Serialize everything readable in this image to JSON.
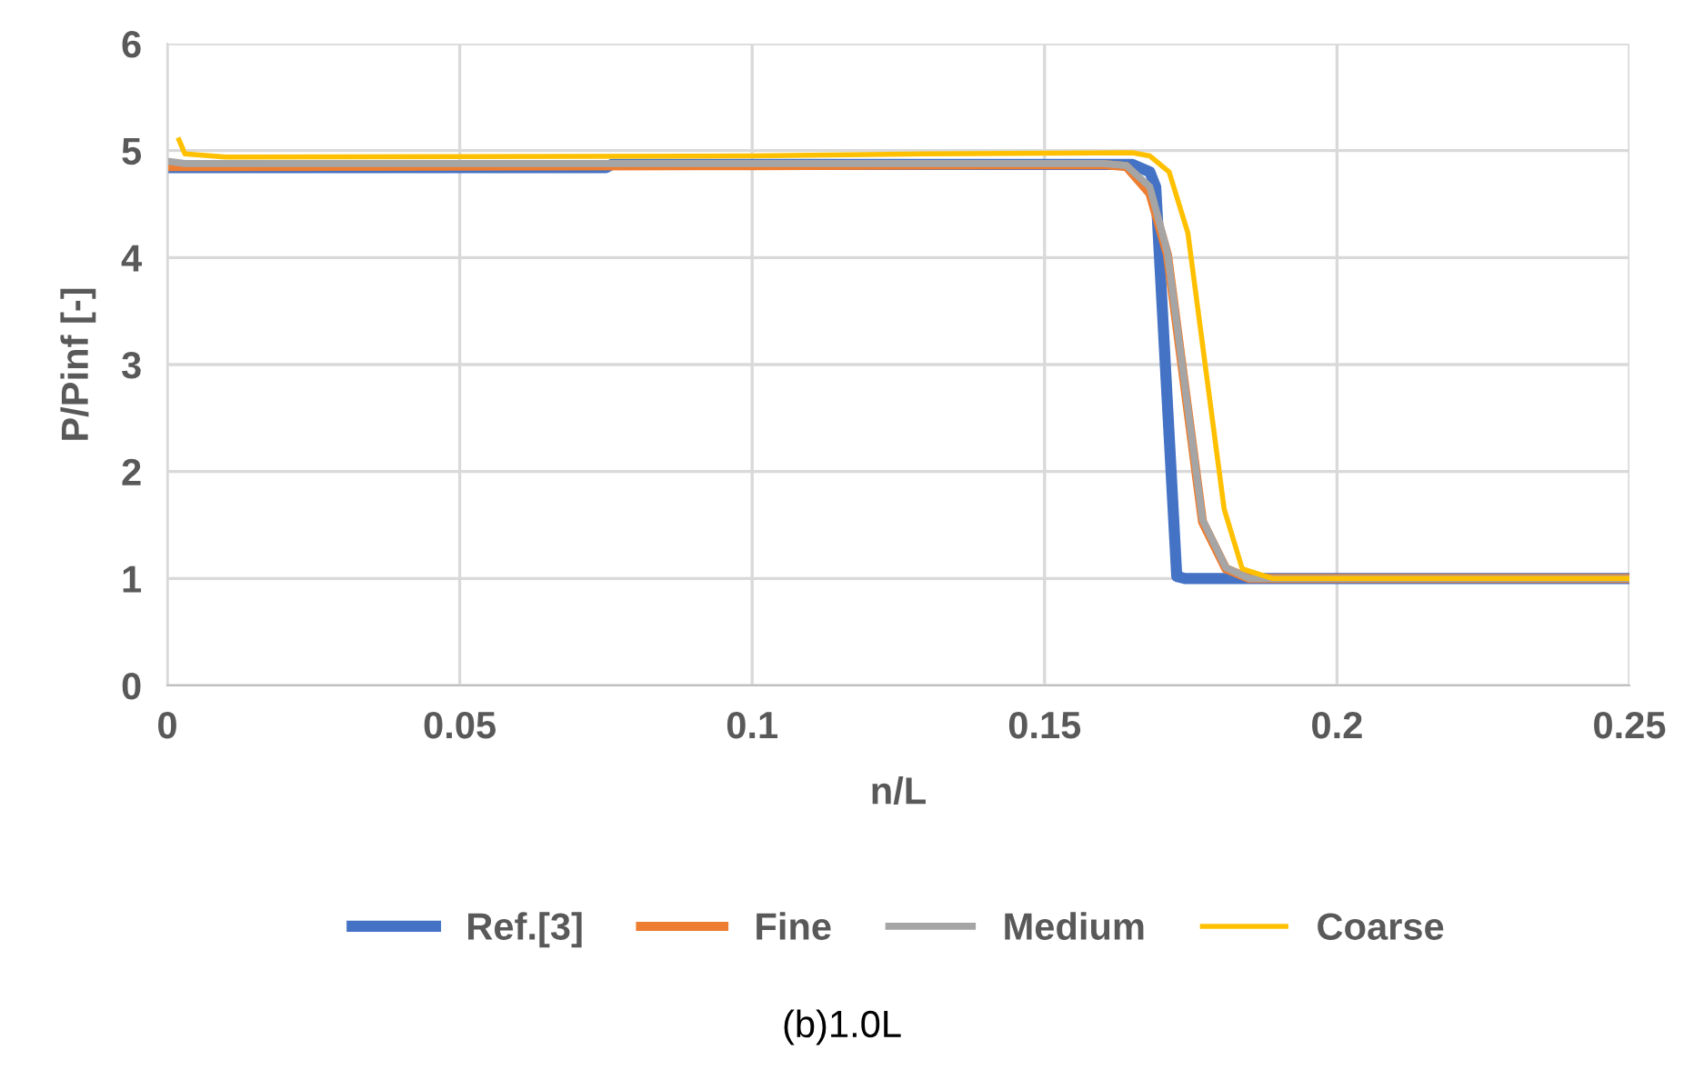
{
  "chart_data": {
    "type": "line",
    "xlabel": "n/L",
    "ylabel": "P/Pinf [-]",
    "annotations": [
      "(b)1.0L"
    ],
    "xlim": [
      0,
      0.25
    ],
    "ylim": [
      0,
      6
    ],
    "xticks": [
      0,
      0.05,
      0.1,
      0.15,
      0.2,
      0.25
    ],
    "yticks": [
      0,
      1,
      2,
      3,
      4,
      5,
      6
    ],
    "grid": true,
    "legend": "bottom",
    "marker": "none",
    "line_style": "solid",
    "series": [
      {
        "name": "Ref.[3]",
        "color": "#4472c4",
        "x": [
          0,
          0.075,
          0.076,
          0.14,
          0.165,
          0.168,
          0.169,
          0.1726,
          0.174,
          0.25
        ],
        "values": [
          4.84,
          4.84,
          4.87,
          4.87,
          4.87,
          4.8,
          4.66,
          1.02,
          1.0,
          1.0
        ]
      },
      {
        "name": "Fine",
        "color": "#ed7d31",
        "x": [
          0,
          0.005,
          0.1,
          0.16,
          0.164,
          0.168,
          0.171,
          0.177,
          0.181,
          0.185,
          0.25
        ],
        "values": [
          4.85,
          4.85,
          4.86,
          4.87,
          4.85,
          4.6,
          4.03,
          1.53,
          1.09,
          1.0,
          1.0
        ]
      },
      {
        "name": "Medium",
        "color": "#a5a5a5",
        "x": [
          0,
          0.003,
          0.1,
          0.16,
          0.164,
          0.168,
          0.171,
          0.177,
          0.181,
          0.185,
          0.25
        ],
        "values": [
          4.9,
          4.88,
          4.88,
          4.88,
          4.86,
          4.66,
          4.05,
          1.55,
          1.1,
          1.0,
          1.0
        ]
      },
      {
        "name": "Coarse",
        "color": "#ffc000",
        "x": [
          0.002,
          0.003,
          0.01,
          0.1,
          0.13,
          0.165,
          0.168,
          0.1713,
          0.1745,
          0.1807,
          0.1838,
          0.189,
          0.25
        ],
        "values": [
          5.1,
          4.97,
          4.94,
          4.95,
          4.97,
          4.98,
          4.95,
          4.8,
          4.23,
          1.65,
          1.09,
          1.0,
          1.0
        ]
      }
    ]
  }
}
